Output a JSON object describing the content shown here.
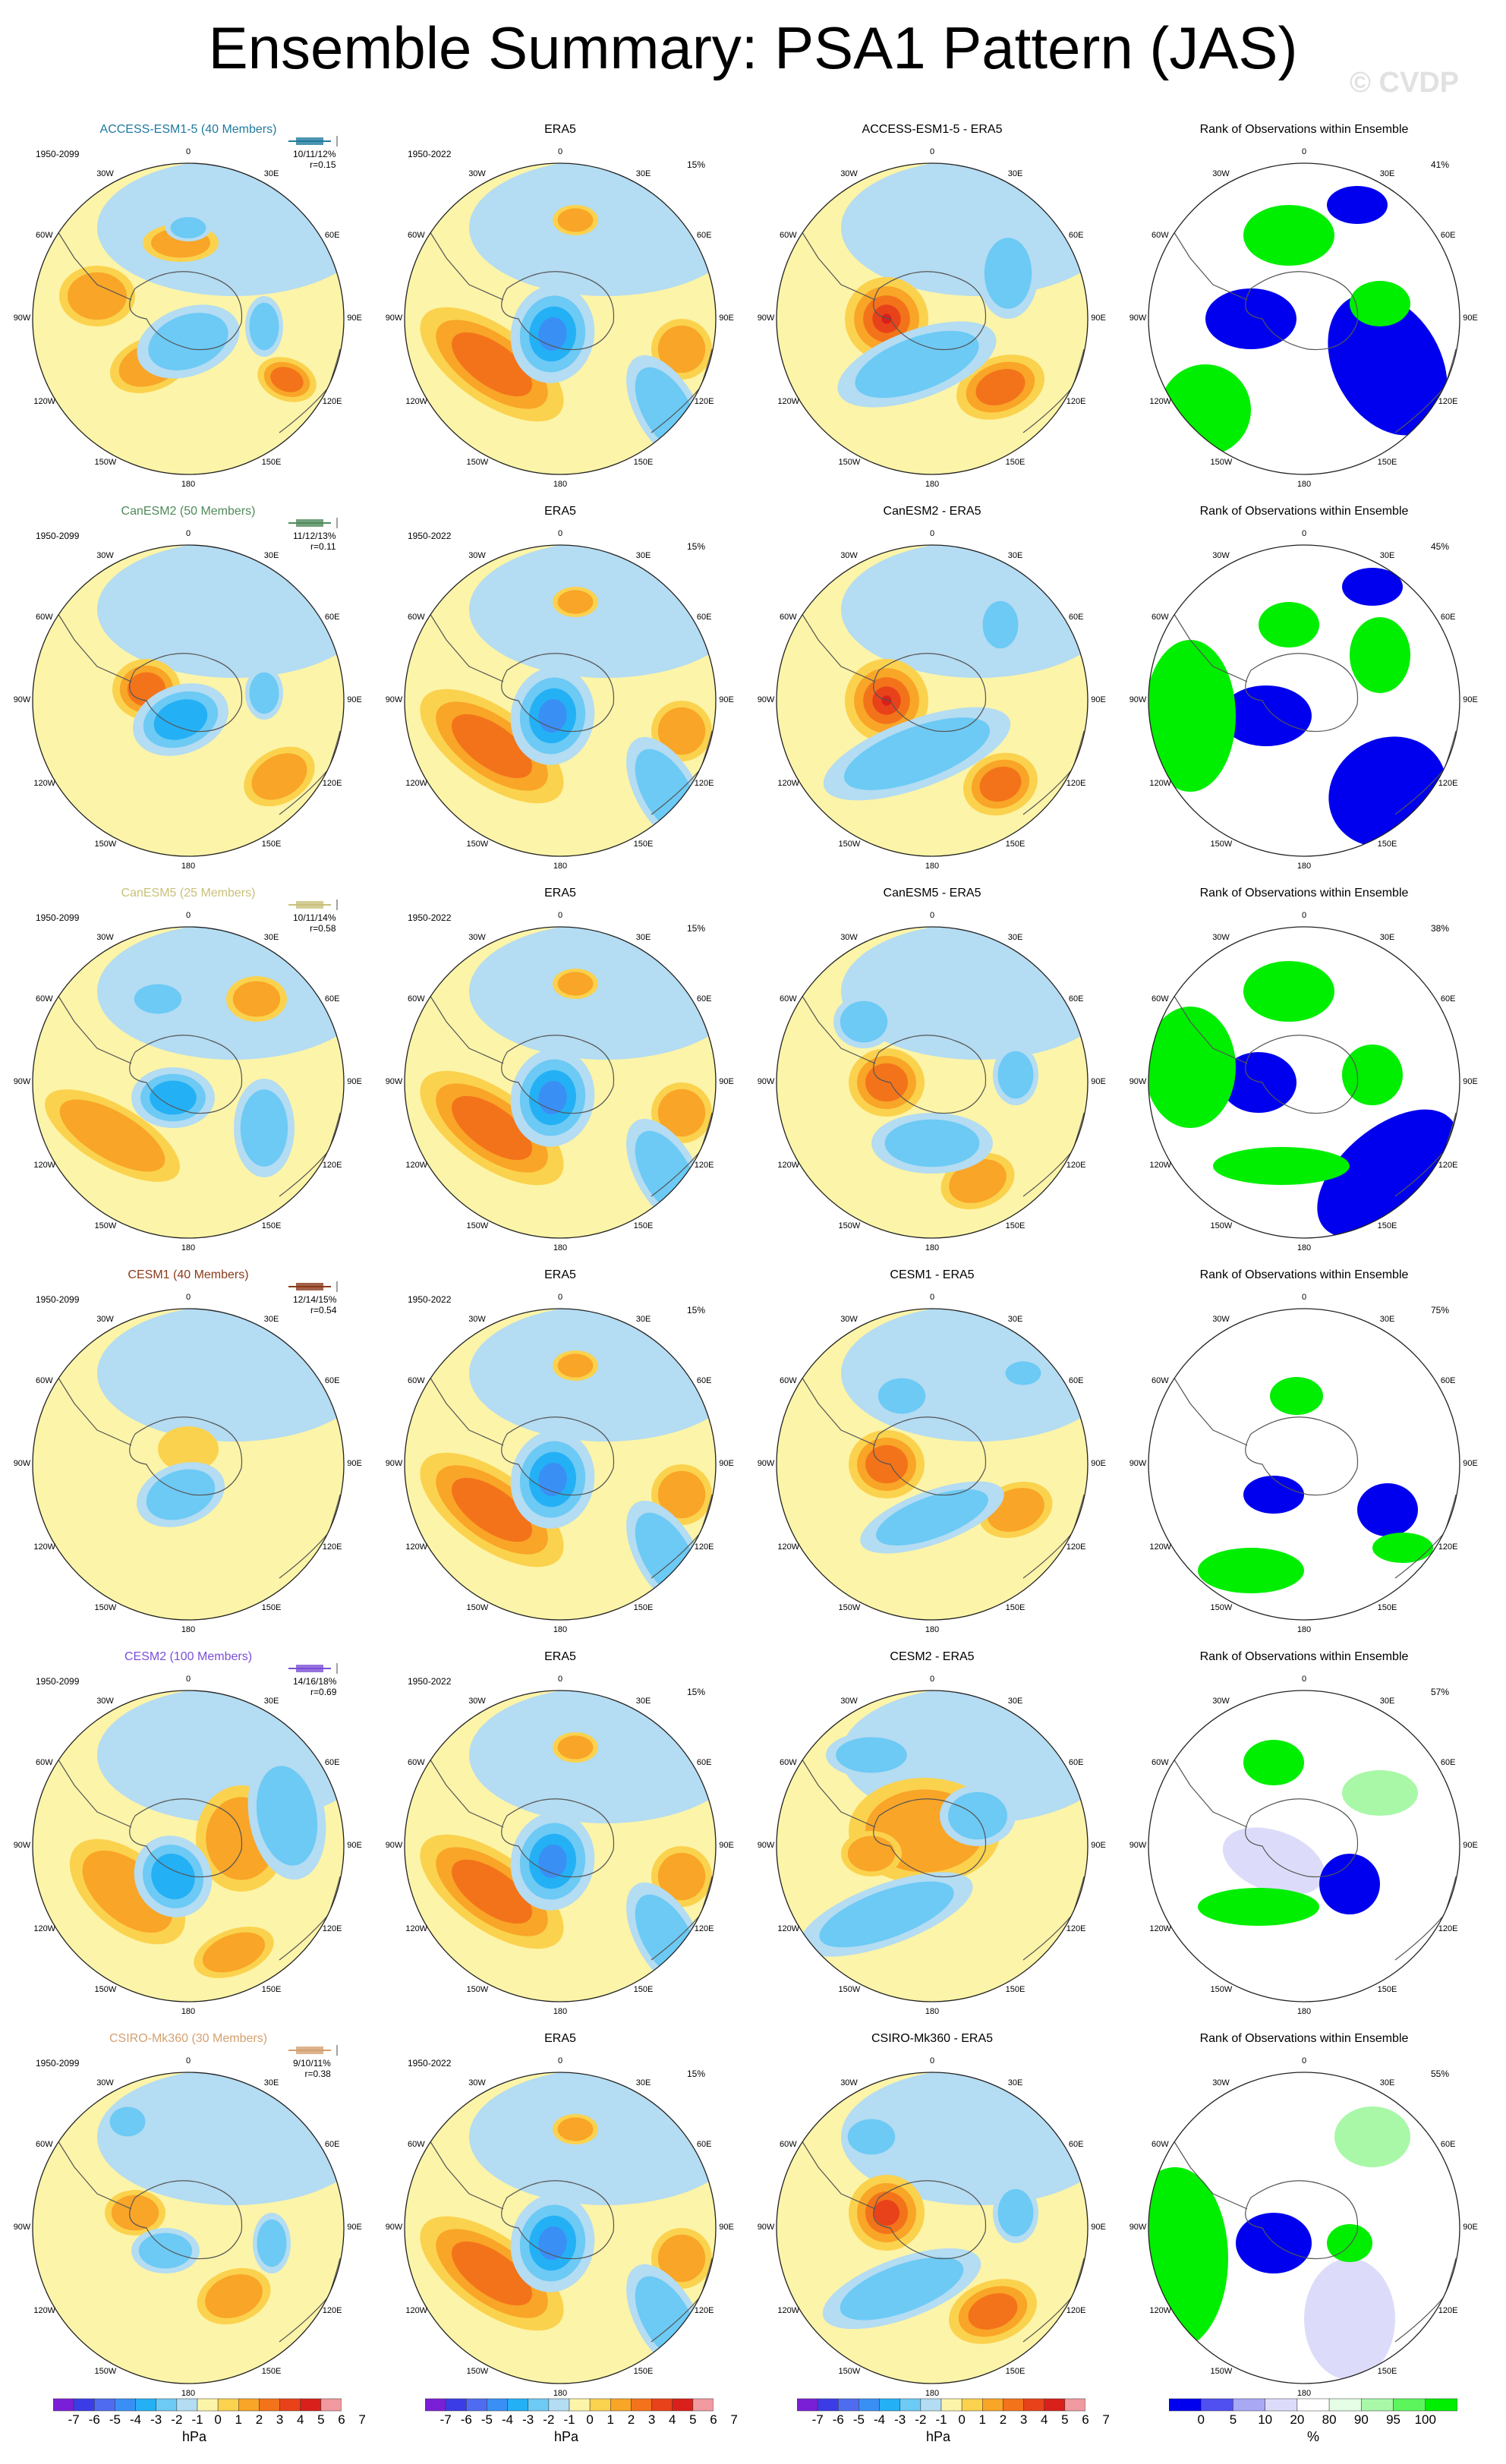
{
  "title": "Ensemble Summary: PSA1 Pattern (JAS)",
  "watermark": "© CVDP",
  "lon_labels": [
    "0",
    "30E",
    "60E",
    "90E",
    "120E",
    "150E",
    "180",
    "150W",
    "120W",
    "90W",
    "60W",
    "30W"
  ],
  "colors": {
    "hpa_scale": [
      "#7a1fd6",
      "#3c3ce6",
      "#4f6cf0",
      "#3a8ff5",
      "#24b0f5",
      "#6ccaf5",
      "#b4dcf2",
      "#fcf4a8",
      "#fbd24e",
      "#f9a527",
      "#f3731a",
      "#e8421a",
      "#d9201a",
      "#f09aa0"
    ],
    "rank_scale": [
      "#0000ee",
      "#5050f0",
      "#a8a8f4",
      "#dcdcfa",
      "#ffffff",
      "#e4fde4",
      "#a8f8a8",
      "#5cf55c",
      "#00ee00"
    ]
  },
  "colorbars": {
    "hpa_ticks": [
      "-7",
      "-6",
      "-5",
      "-4",
      "-3",
      "-2",
      "-1",
      "0",
      "1",
      "2",
      "3",
      "4",
      "5",
      "6",
      "7"
    ],
    "hpa_unit": "hPa",
    "rank_ticks": [
      "0",
      "5",
      "10",
      "20",
      "80",
      "90",
      "95",
      "100"
    ],
    "rank_unit": "%"
  },
  "rows": [
    {
      "model": "ACCESS-ESM1-5 (40 Members)",
      "model_short": "ACCESS-ESM1-5",
      "model_color": "#1f7a9e",
      "years": "1950-2099",
      "stats": "10/11/12%",
      "corr": "r=0.15",
      "era_title": "ERA5",
      "era_years": "1950-2022",
      "era_pct": "15%",
      "diff_title": "ACCESS-ESM1-5 - ERA5",
      "rank_title": "Rank of Observations within Ensemble",
      "rank_pct": "41%"
    },
    {
      "model": "CanESM2 (50 Members)",
      "model_short": "CanESM2",
      "model_color": "#4f8a5a",
      "years": "1950-2099",
      "stats": "11/12/13%",
      "corr": "r=0.11",
      "era_title": "ERA5",
      "era_years": "1950-2022",
      "era_pct": "15%",
      "diff_title": "CanESM2 - ERA5",
      "rank_title": "Rank of Observations within Ensemble",
      "rank_pct": "45%"
    },
    {
      "model": "CanESM5 (25 Members)",
      "model_short": "CanESM5",
      "model_color": "#c9c07a",
      "years": "1950-2099",
      "stats": "10/11/14%",
      "corr": "r=0.58",
      "era_title": "ERA5",
      "era_years": "1950-2022",
      "era_pct": "15%",
      "diff_title": "CanESM5 - ERA5",
      "rank_title": "Rank of Observations within Ensemble",
      "rank_pct": "38%"
    },
    {
      "model": "CESM1 (40 Members)",
      "model_short": "CESM1",
      "model_color": "#8a3a1a",
      "years": "1950-2099",
      "stats": "12/14/15%",
      "corr": "r=0.54",
      "era_title": "ERA5",
      "era_years": "1950-2022",
      "era_pct": "15%",
      "diff_title": "CESM1 - ERA5",
      "rank_title": "Rank of Observations within Ensemble",
      "rank_pct": "75%"
    },
    {
      "model": "CESM2 (100 Members)",
      "model_short": "CESM2",
      "model_color": "#7a4fd6",
      "years": "1950-2099",
      "stats": "14/16/18%",
      "corr": "r=0.69",
      "era_title": "ERA5",
      "era_years": "1950-2022",
      "era_pct": "15%",
      "diff_title": "CESM2 - ERA5",
      "rank_title": "Rank of Observations within Ensemble",
      "rank_pct": "57%"
    },
    {
      "model": "CSIRO-Mk360 (30 Members)",
      "model_short": "CSIRO-Mk360",
      "model_color": "#d4a070",
      "years": "1950-2099",
      "stats": "9/10/11%",
      "corr": "r=0.38",
      "era_title": "ERA5",
      "era_years": "1950-2022",
      "era_pct": "15%",
      "diff_title": "CSIRO-Mk360 - ERA5",
      "rank_title": "Rank of Observations within Ensemble",
      "rank_pct": "55%"
    }
  ]
}
